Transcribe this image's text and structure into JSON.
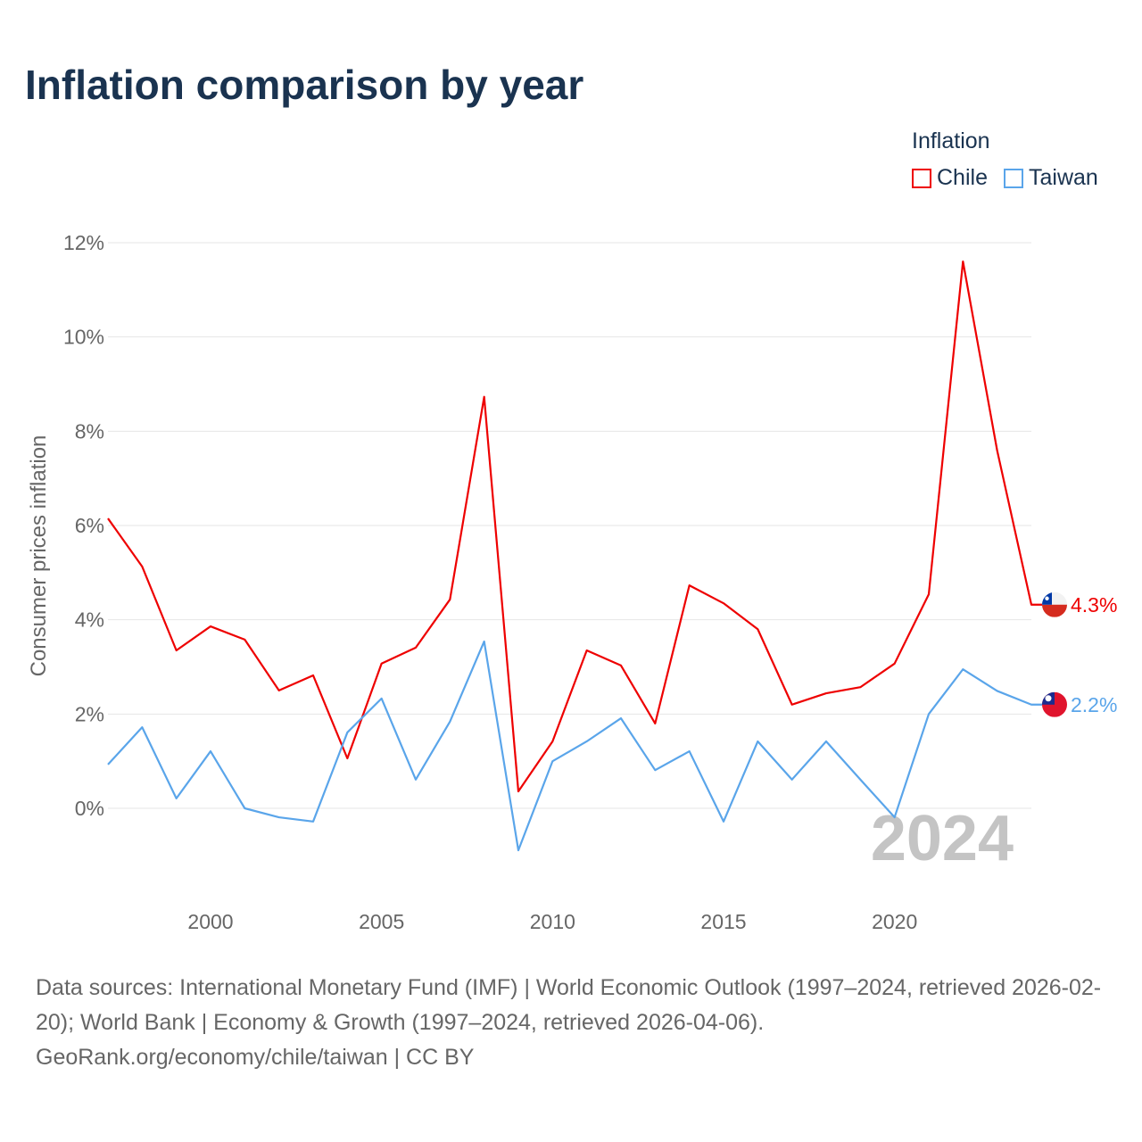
{
  "title": "Inflation comparison by year",
  "legend": {
    "title": "Inflation",
    "items": [
      {
        "label": "Chile",
        "color": "#ee0000"
      },
      {
        "label": "Taiwan",
        "color": "#5aa5ea"
      }
    ]
  },
  "year_watermark": "2024",
  "footer": {
    "sources": "Data sources: International Monetary Fund (IMF) | World Economic Outlook (1997–2024, retrieved 2026-02-20); World Bank | Economy & Growth (1997–2024, retrieved 2026-04-06).",
    "credit": "GeoRank.org/economy/chile/taiwan | CC BY"
  },
  "chart_data": {
    "type": "line",
    "title": "Inflation comparison by year",
    "xlabel": "",
    "ylabel": "Consumer prices inflation",
    "xlim": [
      1997,
      2024
    ],
    "ylim": [
      -1.5,
      12
    ],
    "yticks": [
      0,
      2,
      4,
      6,
      8,
      10,
      12
    ],
    "ytick_labels": [
      "0%",
      "2%",
      "4%",
      "6%",
      "8%",
      "10%",
      "12%"
    ],
    "xticks": [
      2000,
      2005,
      2010,
      2015,
      2020
    ],
    "xtick_labels": [
      "2000",
      "2005",
      "2010",
      "2015",
      "2020"
    ],
    "grid": true,
    "legend_position": "top-right",
    "x": [
      1997,
      1998,
      1999,
      2000,
      2001,
      2002,
      2003,
      2004,
      2005,
      2006,
      2007,
      2008,
      2009,
      2010,
      2011,
      2012,
      2013,
      2014,
      2015,
      2016,
      2017,
      2018,
      2019,
      2020,
      2021,
      2022,
      2023,
      2024
    ],
    "series": [
      {
        "name": "Chile",
        "color": "#ee0000",
        "end_label": "4.3%",
        "values": [
          6.15,
          5.13,
          3.35,
          3.86,
          3.58,
          2.5,
          2.82,
          1.06,
          3.07,
          3.41,
          4.43,
          8.73,
          0.36,
          1.42,
          3.35,
          3.03,
          1.8,
          4.73,
          4.35,
          3.8,
          2.2,
          2.44,
          2.57,
          3.07,
          4.54,
          11.6,
          7.59,
          4.32
        ]
      },
      {
        "name": "Taiwan",
        "color": "#5aa5ea",
        "end_label": "2.2%",
        "values": [
          0.93,
          1.72,
          0.21,
          1.21,
          0.0,
          -0.19,
          -0.28,
          1.61,
          2.33,
          0.61,
          1.84,
          3.54,
          -0.89,
          1.0,
          1.42,
          1.91,
          0.81,
          1.21,
          -0.28,
          1.42,
          0.61,
          1.42,
          0.61,
          -0.19,
          2.0,
          2.95,
          2.49,
          2.2
        ]
      }
    ]
  }
}
